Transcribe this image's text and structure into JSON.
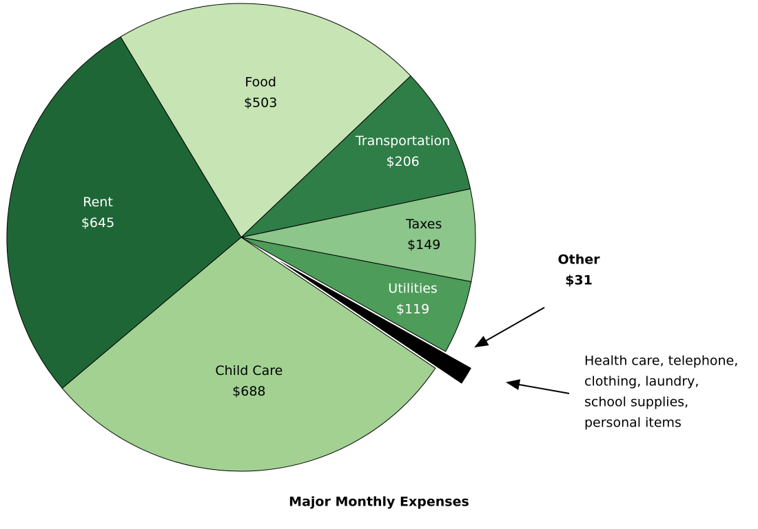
{
  "chart_data": {
    "type": "pie",
    "title": "Major Monthly Expenses",
    "categories": [
      "Food",
      "Transportation",
      "Taxes",
      "Utilities",
      "Other",
      "Child Care",
      "Rent"
    ],
    "values": [
      503,
      206,
      149,
      119,
      31,
      688,
      645
    ],
    "value_labels": [
      "$503",
      "$206",
      "$149",
      "$119",
      "$31",
      "$688",
      "$645"
    ],
    "colors": [
      "#c6e4b4",
      "#2f7d47",
      "#8cc68a",
      "#4d9c5a",
      "#000000",
      "#a2d192",
      "#1f6636"
    ],
    "exploded": [
      "Other"
    ],
    "annotation": [
      "Health care, telephone,",
      "clothing, laundry,",
      "school supplies,",
      "personal items"
    ]
  }
}
